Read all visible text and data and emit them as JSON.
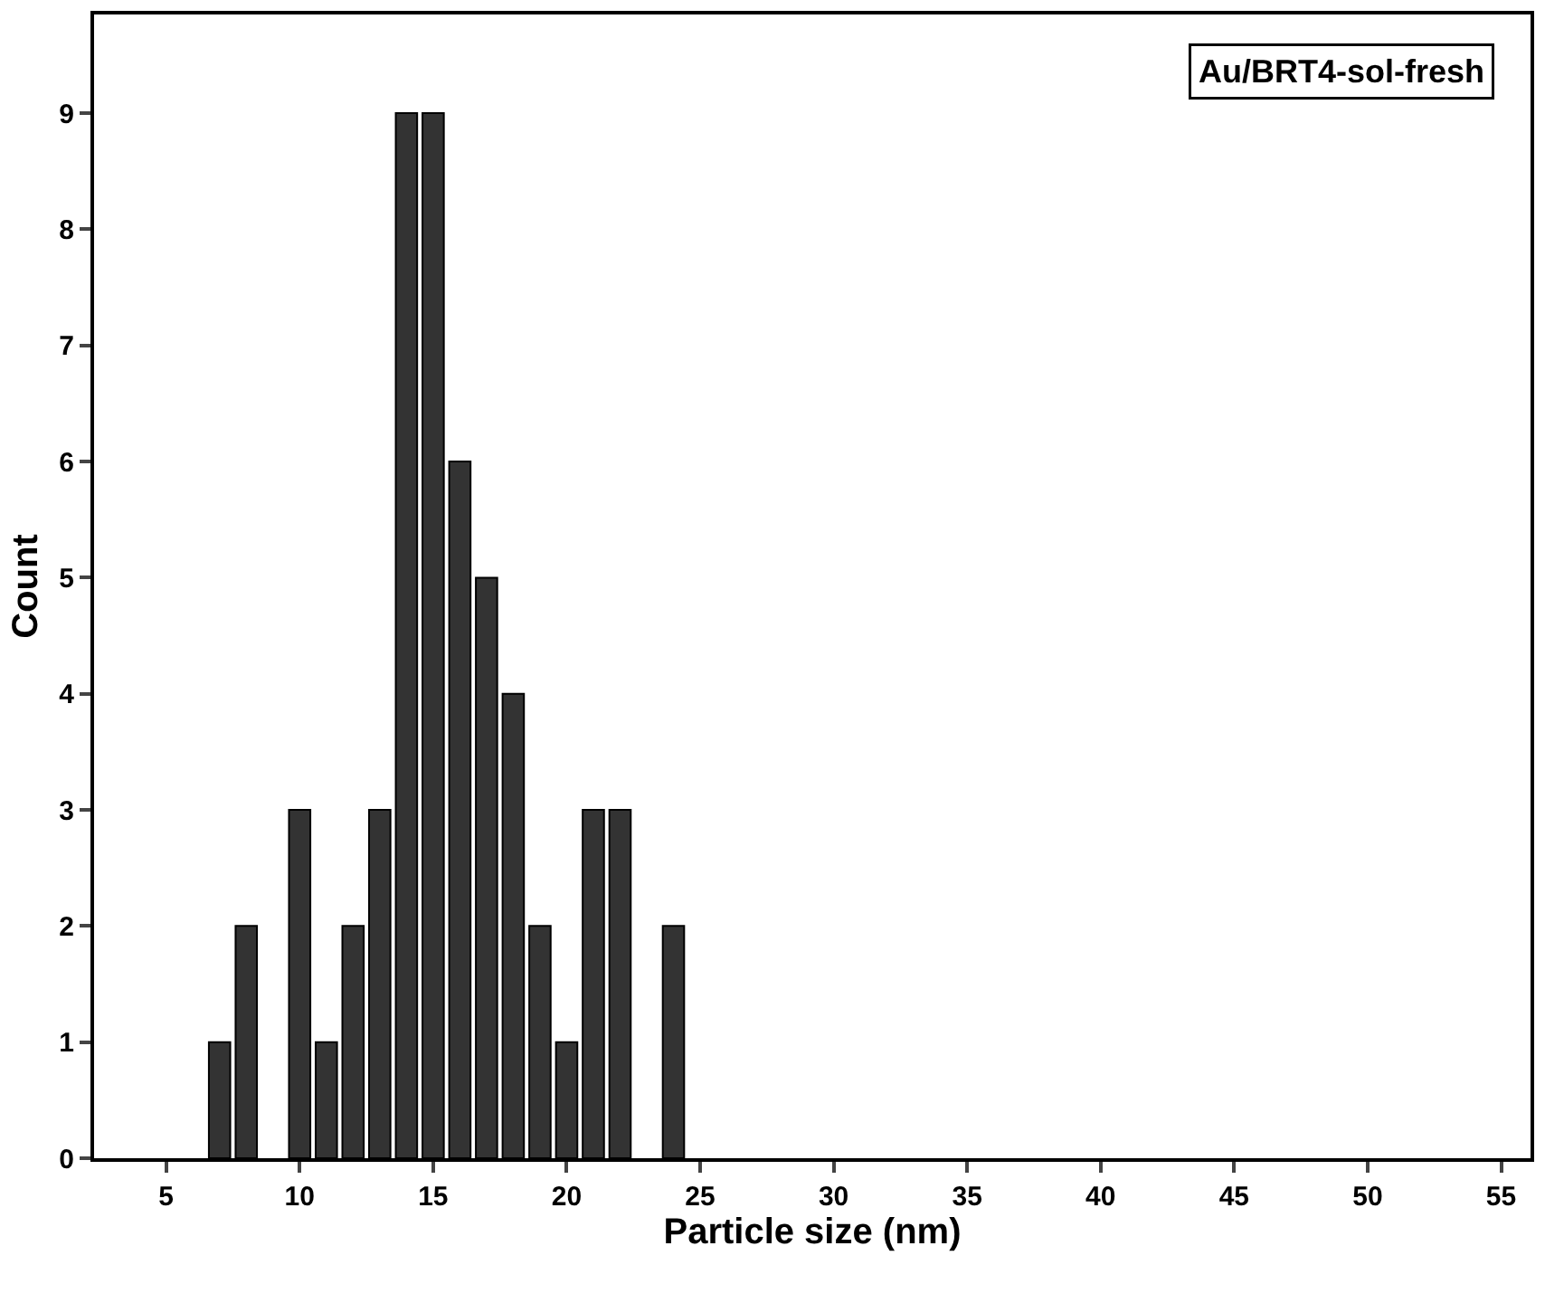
{
  "chart_data": {
    "type": "bar",
    "xlabel": "Particle size (nm)",
    "ylabel": "Count",
    "x": [
      7,
      8,
      10,
      11,
      12,
      13,
      14,
      15,
      16,
      17,
      18,
      19,
      20,
      21,
      22,
      24
    ],
    "values": [
      1,
      2,
      3,
      1,
      2,
      3,
      9,
      9,
      6,
      5,
      4,
      2,
      1,
      3,
      3,
      2
    ],
    "color": "#333333",
    "xlim": [
      2.3,
      56.1
    ],
    "xticks": [
      5,
      10,
      15,
      20,
      25,
      30,
      35,
      40,
      45,
      50,
      55
    ],
    "ylim": [
      0,
      9.85
    ],
    "yticks": [
      0,
      1,
      2,
      3,
      4,
      5,
      6,
      7,
      8,
      9
    ],
    "legend": false,
    "annotations": [
      "Au/BRT4-sol-fresh"
    ]
  }
}
